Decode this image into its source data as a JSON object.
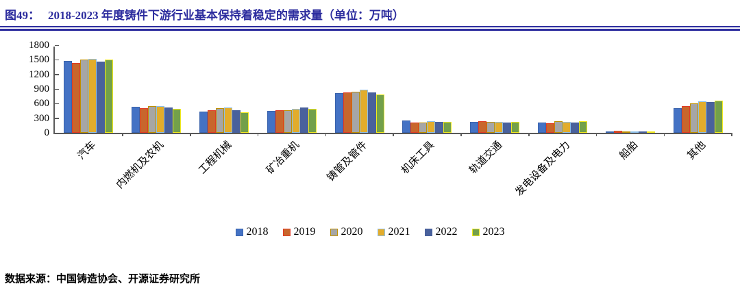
{
  "title": {
    "prefix": "图49：",
    "text": "2018-2023 年度铸件下游行业基本保持着稳定的需求量（单位：万吨）"
  },
  "source": "数据来源：中国铸造协会、开源证券研究所",
  "colors": {
    "title": "#2c2c9e",
    "rule": "#2c2c9e",
    "axis": "#595959"
  },
  "chart_data": {
    "type": "bar",
    "title": "2018-2023 年度铸件下游行业基本保持着稳定的需求量",
    "unit": "万吨",
    "categories": [
      "汽车",
      "内燃机及农机",
      "工程机械",
      "矿冶重机",
      "铸管及管件",
      "机床工具",
      "轨道交通",
      "发电设备及电力",
      "船舶",
      "其他"
    ],
    "series": [
      {
        "name": "2018",
        "fill": "#4472c4",
        "border": "#3a63ac",
        "values": [
          1480,
          530,
          430,
          450,
          820,
          250,
          225,
          215,
          25,
          500
        ]
      },
      {
        "name": "2019",
        "fill": "#c8662c",
        "border": "#e13b24",
        "values": [
          1430,
          510,
          460,
          465,
          835,
          215,
          235,
          195,
          40,
          545
        ]
      },
      {
        "name": "2020",
        "fill": "#a6a6a6",
        "border": "#bf9000",
        "values": [
          1500,
          545,
          500,
          460,
          850,
          205,
          220,
          235,
          20,
          610
        ]
      },
      {
        "name": "2021",
        "fill": "#e2ac2c",
        "border": "#8dbfe8",
        "values": [
          1525,
          555,
          520,
          490,
          880,
          240,
          230,
          220,
          25,
          650
        ]
      },
      {
        "name": "2022",
        "fill": "#49619c",
        "border": "#49619c",
        "values": [
          1465,
          520,
          470,
          515,
          825,
          220,
          215,
          205,
          20,
          635
        ]
      },
      {
        "name": "2023",
        "fill": "#73a04a",
        "border": "#f2ea1e",
        "values": [
          1505,
          490,
          420,
          495,
          790,
          230,
          225,
          240,
          25,
          655
        ]
      }
    ],
    "ylim": [
      0,
      1800
    ],
    "yticks": [
      0,
      300,
      600,
      900,
      1200,
      1500,
      1800
    ],
    "grid": false,
    "legend_position": "bottom"
  }
}
